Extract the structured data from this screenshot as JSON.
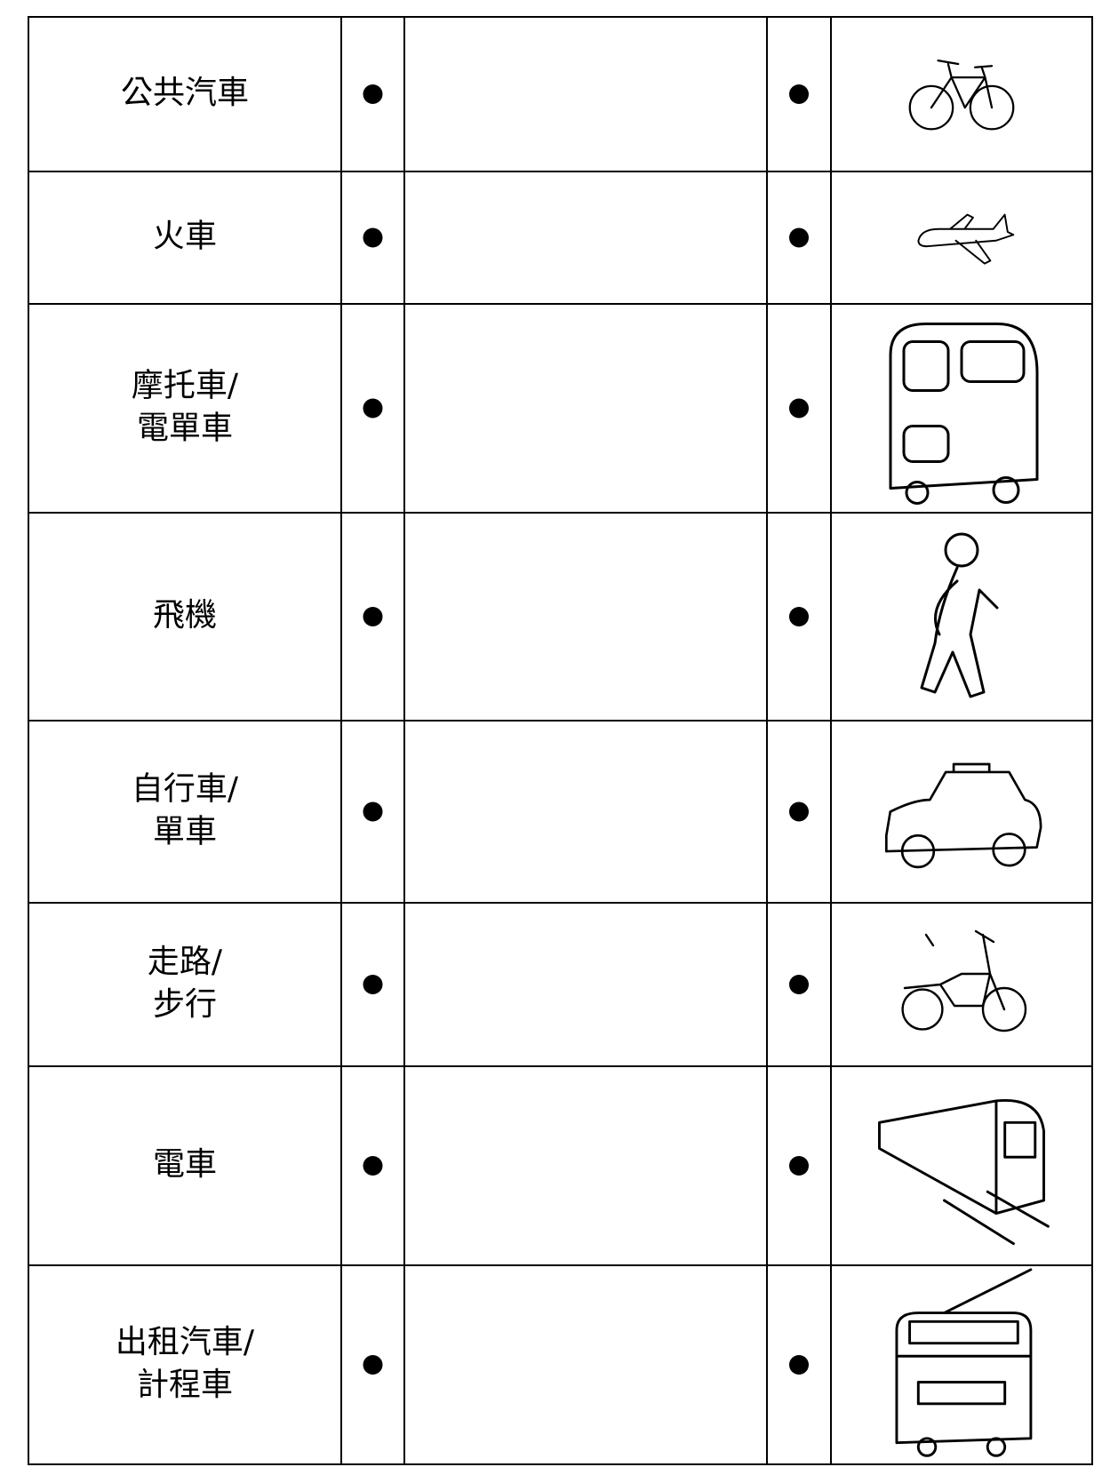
{
  "rows": [
    {
      "label": [
        "公共汽車"
      ]
    },
    {
      "label": [
        "火車"
      ]
    },
    {
      "label": [
        "摩托車/",
        "電單車"
      ]
    },
    {
      "label": [
        "飛機"
      ]
    },
    {
      "label": [
        "自行車/",
        "單車"
      ]
    },
    {
      "label": [
        "走路/",
        "步行"
      ]
    },
    {
      "label": [
        "電車"
      ]
    },
    {
      "label": [
        "出租汽車/",
        "計程車"
      ]
    }
  ]
}
